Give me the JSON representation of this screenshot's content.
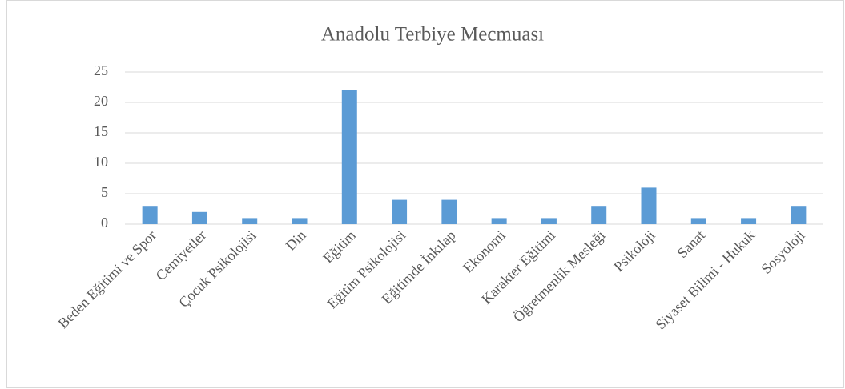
{
  "chart_data": {
    "type": "bar",
    "title": "Anadolu Terbiye Mecmuası",
    "categories": [
      "Beden Eğitimi ve Spor",
      "Cemiyetler",
      "Çocuk Psikolojisi",
      "Din",
      "Eğitim",
      "Eğitim Psikolojisi",
      "Eğitimde İnkılap",
      "Ekonomi",
      "Karakter Eğitimi",
      "Öğretmenlik Mesleği",
      "Psikoloji",
      "Sanat",
      "Siyaset Bilimi - Hukuk",
      "Sosyoloji"
    ],
    "values": [
      3,
      2,
      1,
      1,
      22,
      4,
      4,
      1,
      1,
      3,
      6,
      1,
      1,
      3
    ],
    "color": "#5b9bd5",
    "ylim": [
      0,
      25
    ],
    "yticks": [
      0,
      5,
      10,
      15,
      20,
      25
    ],
    "grid": true
  }
}
